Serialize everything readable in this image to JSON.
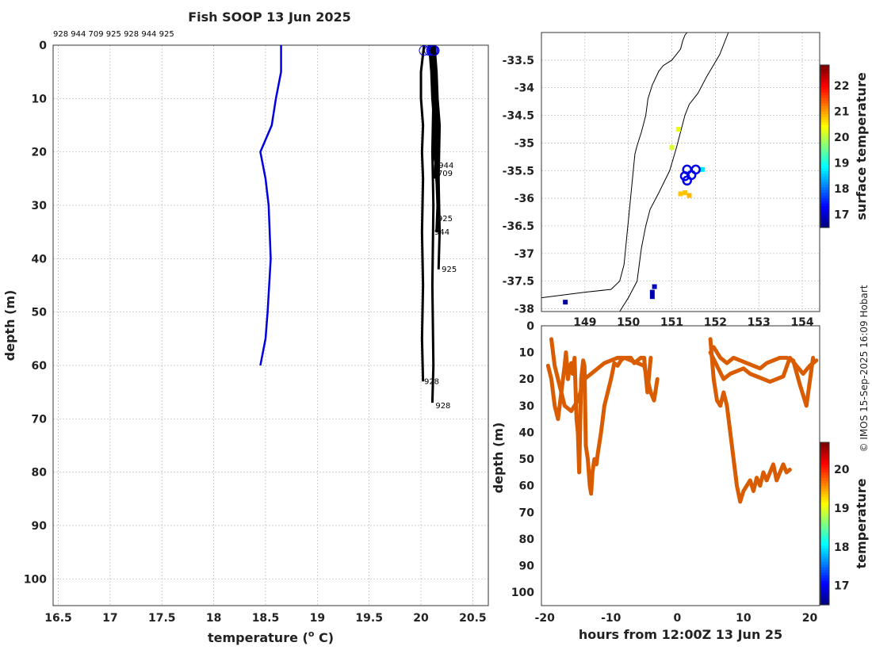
{
  "title": "Fish SOOP 13 Jun 2025",
  "ids_header": "928 944 709 925 928 944 925",
  "watermark": "© IMOS 15-Sep-2025 16:09 Hobart",
  "chart_data": [
    {
      "type": "line",
      "name": "profile",
      "xlabel": "temperature (",
      "xlabel_sup": "o",
      "xlabel_tail": " C)",
      "ylabel": "depth (m)",
      "xlim": [
        16.45,
        20.65
      ],
      "ylim": [
        0,
        105
      ],
      "xticks": [
        16.5,
        17,
        17.5,
        18,
        18.5,
        19,
        19.5,
        20,
        20.5
      ],
      "xtick_labels": [
        "16.5",
        "17",
        "17.5",
        "18",
        "18.5",
        "19",
        "19.5",
        "20",
        "20.5"
      ],
      "yticks": [
        0,
        10,
        20,
        30,
        40,
        50,
        60,
        70,
        80,
        90,
        100
      ],
      "ytick_labels": [
        "0",
        "10",
        "20",
        "30",
        "40",
        "50",
        "60",
        "70",
        "80",
        "90",
        "100"
      ],
      "reference_series": {
        "name": "climatology",
        "color": "#0000dd",
        "temperature": [
          18.65,
          18.65,
          18.6,
          18.56,
          18.45,
          18.5,
          18.53,
          18.55,
          18.52,
          18.5,
          18.45
        ],
        "depth": [
          0,
          5,
          10,
          15,
          20,
          25,
          30,
          40,
          50,
          55,
          60
        ]
      },
      "profiles": [
        {
          "id": "928",
          "color": "#000",
          "temperature": [
            20.03,
            20.0,
            20.0,
            20.02,
            20.01,
            20.02,
            20.01,
            20.02,
            20.01,
            20.02
          ],
          "depth": [
            0,
            5,
            10,
            15,
            20,
            25,
            35,
            45,
            55,
            63
          ]
        },
        {
          "id": "944",
          "color": "#000",
          "temperature": [
            20.1,
            20.12,
            20.13,
            20.15,
            20.14,
            20.16,
            20.15
          ],
          "depth": [
            0,
            5,
            10,
            15,
            20,
            23,
            25
          ]
        },
        {
          "id": "709",
          "color": "#000",
          "temperature": [
            20.08,
            20.1,
            20.11,
            20.13,
            20.12,
            20.14,
            20.13
          ],
          "depth": [
            0,
            5,
            10,
            15,
            20,
            22,
            25
          ]
        },
        {
          "id": "925",
          "color": "#000",
          "temperature": [
            20.11,
            20.12,
            20.15,
            20.16,
            20.15,
            20.17,
            20.16
          ],
          "depth": [
            0,
            5,
            10,
            15,
            25,
            30,
            33
          ]
        },
        {
          "id": "928",
          "color": "#000",
          "temperature": [
            20.12,
            20.14,
            20.15,
            20.16,
            20.15,
            20.17,
            20.16
          ],
          "depth": [
            0,
            5,
            10,
            15,
            25,
            30,
            35
          ]
        },
        {
          "id": "944",
          "color": "#000",
          "temperature": [
            20.1,
            20.12,
            20.14,
            20.16,
            20.15,
            20.16,
            20.15
          ],
          "depth": [
            0,
            5,
            10,
            15,
            25,
            30,
            35
          ]
        },
        {
          "id": "925",
          "color": "#000",
          "temperature": [
            20.13,
            20.15,
            20.16,
            20.18,
            20.17,
            20.18,
            20.17
          ],
          "depth": [
            0,
            5,
            10,
            15,
            25,
            35,
            42
          ]
        },
        {
          "id": "928",
          "color": "#000",
          "temperature": [
            20.12,
            20.13,
            20.12,
            20.11,
            20.12,
            20.11,
            20.12,
            20.11
          ],
          "depth": [
            0,
            5,
            10,
            20,
            30,
            45,
            60,
            67
          ]
        }
      ],
      "profile_labels": [
        {
          "text": "944",
          "temperature": 20.17,
          "depth": 23
        },
        {
          "text": "709",
          "temperature": 20.16,
          "depth": 24.5
        },
        {
          "text": "925",
          "temperature": 20.16,
          "depth": 33
        },
        {
          "text": "944",
          "temperature": 20.13,
          "depth": 35.5
        },
        {
          "text": "925",
          "temperature": 20.2,
          "depth": 42.5
        },
        {
          "text": "928",
          "temperature": 20.03,
          "depth": 63.5
        },
        {
          "text": "928",
          "temperature": 20.14,
          "depth": 68
        }
      ]
    },
    {
      "type": "scatter",
      "name": "map",
      "xlim": [
        148.0,
        154.4
      ],
      "ylim": [
        -38.05,
        -33.0
      ],
      "yticks": [
        -33.5,
        -34,
        -34.5,
        -35,
        -35.5,
        -36,
        -36.5,
        -37,
        -37.5,
        -38
      ],
      "ytick_labels": [
        "-33.5",
        "-34",
        "-34.5",
        "-35",
        "-35.5",
        "-36",
        "-36.5",
        "-37",
        "-37.5",
        "-38"
      ],
      "xticks": [
        149,
        150,
        151,
        152,
        153,
        154
      ],
      "xtick_labels": [
        "149",
        "150",
        "151",
        "152",
        "153",
        "154"
      ],
      "colorbar": {
        "label": "surface temperature",
        "min": 16.5,
        "max": 22.8,
        "ticks": [
          17,
          18,
          19,
          20,
          21,
          22
        ],
        "tick_labels": [
          "17",
          "18",
          "19",
          "20",
          "21",
          "22"
        ]
      },
      "coast": {
        "lon": [
          148.0,
          148.5,
          149.0,
          149.6,
          149.8,
          149.9,
          149.95,
          150.0,
          150.05,
          150.1,
          150.15,
          150.2,
          150.3,
          150.4,
          150.45,
          150.55,
          150.7,
          150.8,
          150.9,
          151.0,
          151.1,
          151.2,
          151.25,
          151.3,
          151.35
        ],
        "lat": [
          -37.8,
          -37.75,
          -37.7,
          -37.65,
          -37.5,
          -37.2,
          -36.8,
          -36.4,
          -36.0,
          -35.6,
          -35.2,
          -35.05,
          -34.8,
          -34.5,
          -34.2,
          -33.95,
          -33.7,
          -33.6,
          -33.55,
          -33.5,
          -33.4,
          -33.3,
          -33.15,
          -33.05,
          -33.0
        ]
      },
      "shelf": {
        "lon": [
          149.8,
          150.0,
          150.2,
          150.25,
          150.3,
          150.4,
          150.5,
          150.7,
          150.95,
          151.1,
          151.2,
          151.3,
          151.4,
          151.6,
          151.8,
          152.1,
          152.3
        ],
        "lat": [
          -38.05,
          -37.8,
          -37.5,
          -37.2,
          -36.9,
          -36.5,
          -36.2,
          -35.9,
          -35.5,
          -35.1,
          -34.8,
          -34.5,
          -34.3,
          -34.1,
          -33.8,
          -33.4,
          -33.0
        ]
      },
      "obs": [
        {
          "lon": 148.55,
          "lat": -37.88,
          "temp": 16.7
        },
        {
          "lon": 150.55,
          "lat": -37.7,
          "temp": 16.8
        },
        {
          "lon": 150.6,
          "lat": -37.6,
          "temp": 16.9
        },
        {
          "lon": 150.55,
          "lat": -37.78,
          "temp": 16.8
        },
        {
          "lon": 151.0,
          "lat": -35.08,
          "temp": 20.2
        },
        {
          "lon": 151.15,
          "lat": -34.75,
          "temp": 20.3
        },
        {
          "lon": 151.2,
          "lat": -35.92,
          "temp": 20.8
        },
        {
          "lon": 151.3,
          "lat": -35.9,
          "temp": 20.8
        },
        {
          "lon": 151.4,
          "lat": -35.95,
          "temp": 20.9
        },
        {
          "lon": 151.7,
          "lat": -35.48,
          "temp": 18.7
        }
      ],
      "circles": [
        {
          "lon": 151.35,
          "lat": -35.48
        },
        {
          "lon": 151.55,
          "lat": -35.48
        },
        {
          "lon": 151.3,
          "lat": -35.6
        },
        {
          "lon": 151.45,
          "lat": -35.58
        },
        {
          "lon": 151.35,
          "lat": -35.68
        }
      ]
    },
    {
      "type": "scatter",
      "name": "depth-time",
      "xlabel": "hours from 12:00Z 13 Jun 25",
      "ylabel": "depth (m)",
      "xlim": [
        -20.5,
        21.5
      ],
      "ylim": [
        0,
        105
      ],
      "xticks": [
        -20,
        -10,
        0,
        10,
        20
      ],
      "xtick_labels": [
        "-20",
        "-10",
        "0",
        "10",
        "20"
      ],
      "yticks": [
        0,
        10,
        20,
        30,
        40,
        50,
        60,
        70,
        80,
        90,
        100
      ],
      "ytick_labels": [
        "0",
        "10",
        "20",
        "30",
        "40",
        "50",
        "60",
        "70",
        "80",
        "90",
        "100"
      ],
      "colorbar": {
        "label": "temperature",
        "min": 16.5,
        "max": 20.7,
        "ticks": [
          17,
          18,
          19,
          20
        ],
        "tick_labels": [
          "17",
          "18",
          "19",
          "20"
        ]
      },
      "point_color": "#d95c00",
      "tracks": [
        {
          "hours": [
            -19.5,
            -19,
            -18.5,
            -18,
            -17.5,
            -17,
            -16.8,
            -16.5,
            -16.2,
            -16,
            -15.8,
            -15.5,
            -15.2,
            -15,
            -14.8,
            -14.5,
            -14.2,
            -14,
            -13.8,
            -13.5,
            -13.2,
            -13,
            -12.8,
            -12.5,
            -12.2,
            -12,
            -11.5,
            -11,
            -10.5,
            -10,
            -9.5,
            -9,
            -8.5,
            -8,
            -7,
            -6.5,
            -6,
            -5.5,
            -5,
            -4.5,
            -4
          ],
          "depth": [
            15,
            20,
            30,
            35,
            25,
            15,
            10,
            20,
            15,
            14,
            18,
            12,
            35,
            40,
            55,
            20,
            13,
            15,
            45,
            50,
            60,
            63,
            55,
            50,
            52,
            48,
            40,
            30,
            25,
            20,
            14,
            15,
            13,
            12,
            12,
            14,
            13,
            12,
            12,
            25,
            12
          ]
        },
        {
          "hours": [
            -19,
            -18.5,
            -18,
            -17.5,
            -17,
            -16,
            -15,
            -14,
            -13,
            -12,
            -11,
            -10,
            -9,
            -8,
            -7,
            -6,
            -5,
            -4.5,
            -4,
            -3.5,
            -3
          ],
          "depth": [
            5,
            15,
            20,
            25,
            30,
            32,
            28,
            20,
            18,
            16,
            14,
            13,
            12,
            12,
            13,
            14,
            15,
            20,
            25,
            28,
            20
          ]
        },
        {
          "hours": [
            5,
            5.5,
            6,
            6.5,
            7,
            7.5,
            8,
            8.5,
            9,
            9.5,
            10,
            10.5,
            11,
            11.5,
            12,
            12.5,
            13,
            13.5,
            14,
            14.5,
            15,
            15.5,
            16,
            16.5,
            17
          ],
          "depth": [
            5,
            20,
            28,
            30,
            25,
            30,
            40,
            50,
            60,
            66,
            62,
            60,
            58,
            62,
            57,
            60,
            55,
            58,
            55,
            52,
            58,
            55,
            52,
            55,
            54
          ]
        },
        {
          "hours": [
            5,
            6,
            7,
            8,
            9,
            10,
            11,
            12,
            13,
            14,
            15,
            16,
            17,
            18,
            19,
            20,
            21
          ],
          "depth": [
            10,
            15,
            20,
            18,
            17,
            16,
            18,
            19,
            20,
            21,
            20,
            19,
            12,
            15,
            18,
            15,
            13
          ]
        },
        {
          "hours": [
            5.5,
            6.5,
            7.5,
            8.5,
            9.5,
            10.5,
            11.5,
            12.5,
            13.5,
            14.5,
            15.5,
            16.5,
            17.5,
            18.5,
            19.5,
            20.5
          ],
          "depth": [
            8,
            12,
            14,
            12,
            13,
            14,
            15,
            16,
            14,
            13,
            12,
            12,
            13,
            22,
            30,
            12
          ]
        }
      ]
    }
  ]
}
